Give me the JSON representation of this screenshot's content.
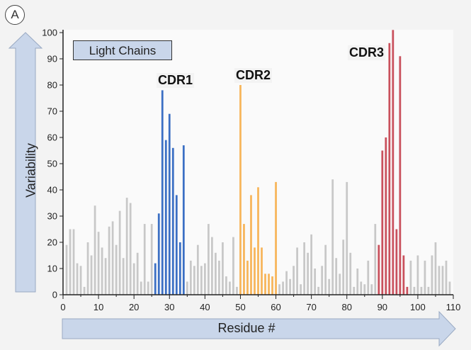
{
  "panel_label": "A",
  "chart_data": {
    "type": "bar",
    "title": "Light Chains",
    "xlabel": "Residue #",
    "ylabel": "Variability",
    "xlim": [
      0,
      110
    ],
    "ylim": [
      0,
      100
    ],
    "xticks": [
      0,
      10,
      20,
      30,
      40,
      50,
      60,
      70,
      80,
      90,
      100,
      110
    ],
    "yticks": [
      0,
      10,
      20,
      30,
      40,
      50,
      60,
      70,
      80,
      90,
      100
    ],
    "regions": [
      {
        "name": "CDR1",
        "start": 26,
        "end": 34,
        "color": "#3b6fc4"
      },
      {
        "name": "CDR2",
        "start": 50,
        "end": 60,
        "color": "#f7b55a"
      },
      {
        "name": "CDR3",
        "start": 89,
        "end": 97,
        "color": "#c9505c"
      }
    ],
    "colors": {
      "framework": "#c8c8c8"
    },
    "residues": [
      1,
      2,
      3,
      4,
      5,
      6,
      7,
      8,
      9,
      10,
      11,
      12,
      13,
      14,
      15,
      16,
      17,
      18,
      19,
      20,
      21,
      22,
      23,
      24,
      25,
      26,
      27,
      28,
      29,
      30,
      31,
      32,
      33,
      34,
      35,
      36,
      37,
      38,
      39,
      40,
      41,
      42,
      43,
      44,
      45,
      46,
      47,
      48,
      49,
      50,
      51,
      52,
      53,
      54,
      55,
      56,
      57,
      58,
      59,
      60,
      61,
      62,
      63,
      64,
      65,
      66,
      67,
      68,
      69,
      70,
      71,
      72,
      73,
      74,
      75,
      76,
      77,
      78,
      79,
      80,
      81,
      82,
      83,
      84,
      85,
      86,
      87,
      88,
      89,
      90,
      91,
      92,
      93,
      94,
      95,
      96,
      97,
      98,
      99,
      100,
      101,
      102,
      103,
      104,
      105,
      106,
      107,
      108,
      109
    ],
    "values": [
      19,
      25,
      25,
      12,
      11,
      3,
      20,
      15,
      34,
      24,
      18,
      14,
      26,
      28,
      19,
      32,
      14,
      37,
      35,
      12,
      16,
      5,
      27,
      5,
      27,
      12,
      31,
      78,
      59,
      69,
      56,
      38,
      20,
      57,
      5,
      13,
      11,
      19,
      11,
      12,
      27,
      22,
      16,
      13,
      20,
      7,
      5,
      22,
      3,
      80,
      27,
      13,
      38,
      18,
      41,
      18,
      8,
      8,
      7,
      43,
      4,
      5,
      9,
      6,
      11,
      18,
      4,
      20,
      16,
      23,
      10,
      3,
      11,
      19,
      6,
      44,
      14,
      8,
      21,
      43,
      16,
      3,
      10,
      5,
      4,
      13,
      4,
      27,
      19,
      55,
      60,
      96,
      101,
      25,
      91,
      15,
      3,
      13,
      3,
      15,
      3,
      13,
      3,
      15,
      20,
      11,
      11,
      13,
      5
    ]
  }
}
